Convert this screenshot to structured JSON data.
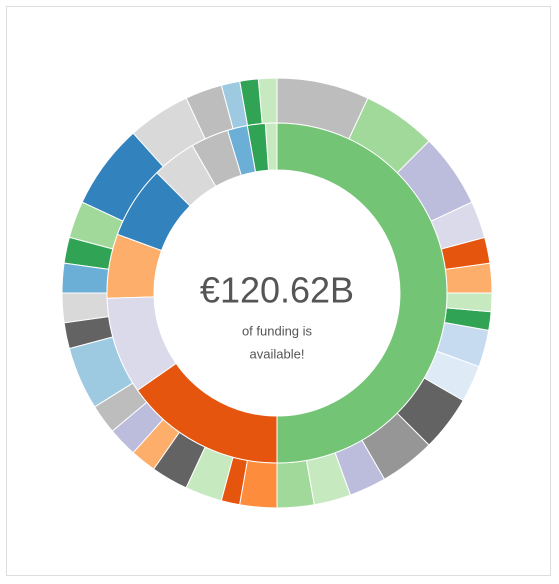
{
  "chart_data": {
    "type": "sunburst",
    "center_value": "€120.62B",
    "center_text": [
      "of funding is",
      "available!"
    ],
    "rings": [
      {
        "values": [
          50,
          15.3,
          9.2,
          6.1,
          6.9,
          4.2,
          3.6,
          1.9,
          1.7,
          1.1
        ],
        "colors": [
          "#74c476",
          "#e6550d",
          "#dadaeb",
          "#fdae6b",
          "#3182bd",
          "#d9d9d9",
          "#bdbdbd",
          "#6baed6",
          "#31a354",
          "#c7e9c0"
        ]
      },
      {
        "values": [
          25,
          20,
          20,
          10,
          7,
          8,
          5,
          5,
          10,
          10,
          15,
          15,
          10,
          10,
          10,
          10,
          5,
          10,
          10,
          7,
          8,
          8,
          17,
          7,
          8,
          8,
          7,
          10,
          23,
          17,
          10,
          5,
          5,
          5
        ],
        "colors": [
          "#bdbdbd",
          "#a1d99b",
          "#bcbddc",
          "#dadaeb",
          "#e6550d",
          "#fdae6b",
          "#c7e9c0",
          "#31a354",
          "#c6dbef",
          "#deebf7",
          "#636363",
          "#969696",
          "#bcbddc",
          "#c7e9c0",
          "#a1d99b",
          "#fd8d3c",
          "#e6550d",
          "#c7e9c0",
          "#636363",
          "#fdae6b",
          "#bcbddc",
          "#bdbdbd",
          "#9ecae1",
          "#636363",
          "#d9d9d9",
          "#6baed6",
          "#31a354",
          "#a1d99b",
          "#3182bd",
          "#d9d9d9",
          "#bdbdbd",
          "#9ecae1",
          "#31a354",
          "#c7e9c0"
        ]
      }
    ]
  }
}
